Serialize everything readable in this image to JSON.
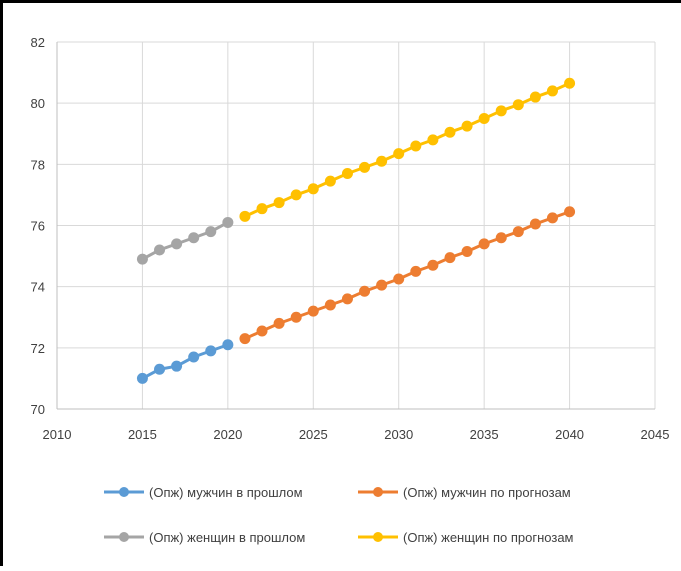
{
  "chart_data": {
    "type": "line",
    "xlim": [
      2010,
      2045
    ],
    "ylim": [
      70,
      82
    ],
    "x_ticks": [
      "2010",
      "2015",
      "2020",
      "2025",
      "2030",
      "2035",
      "2040",
      "2045"
    ],
    "y_ticks": [
      "70",
      "72",
      "74",
      "76",
      "78",
      "80",
      "82"
    ],
    "grid": true,
    "legend_position": "bottom",
    "series": [
      {
        "name": "(Опж) мужчин в прошлом",
        "color": "#5B9BD5",
        "x": [
          2015,
          2016,
          2017,
          2018,
          2019,
          2020
        ],
        "y": [
          71.0,
          71.3,
          71.4,
          71.7,
          71.9,
          72.1
        ]
      },
      {
        "name": "(Опж) мужчин по прогнозам",
        "color": "#ED7D31",
        "x": [
          2021,
          2022,
          2023,
          2024,
          2025,
          2026,
          2027,
          2028,
          2029,
          2030,
          2031,
          2032,
          2033,
          2034,
          2035,
          2036,
          2037,
          2038,
          2039,
          2040
        ],
        "y": [
          72.3,
          72.55,
          72.8,
          73.0,
          73.2,
          73.4,
          73.6,
          73.85,
          74.05,
          74.25,
          74.5,
          74.7,
          74.95,
          75.15,
          75.4,
          75.6,
          75.8,
          76.05,
          76.25,
          76.45
        ]
      },
      {
        "name": "(Опж) женщин в прошлом",
        "color": "#A5A5A5",
        "x": [
          2015,
          2016,
          2017,
          2018,
          2019,
          2020
        ],
        "y": [
          74.9,
          75.2,
          75.4,
          75.6,
          75.8,
          76.1
        ]
      },
      {
        "name": "(Опж) женщин по прогнозам",
        "color": "#FFC000",
        "x": [
          2021,
          2022,
          2023,
          2024,
          2025,
          2026,
          2027,
          2028,
          2029,
          2030,
          2031,
          2032,
          2033,
          2034,
          2035,
          2036,
          2037,
          2038,
          2039,
          2040
        ],
        "y": [
          76.3,
          76.55,
          76.75,
          77.0,
          77.2,
          77.45,
          77.7,
          77.9,
          78.1,
          78.35,
          78.6,
          78.8,
          79.05,
          79.25,
          79.5,
          79.75,
          79.95,
          80.2,
          80.4,
          80.65
        ]
      }
    ]
  }
}
